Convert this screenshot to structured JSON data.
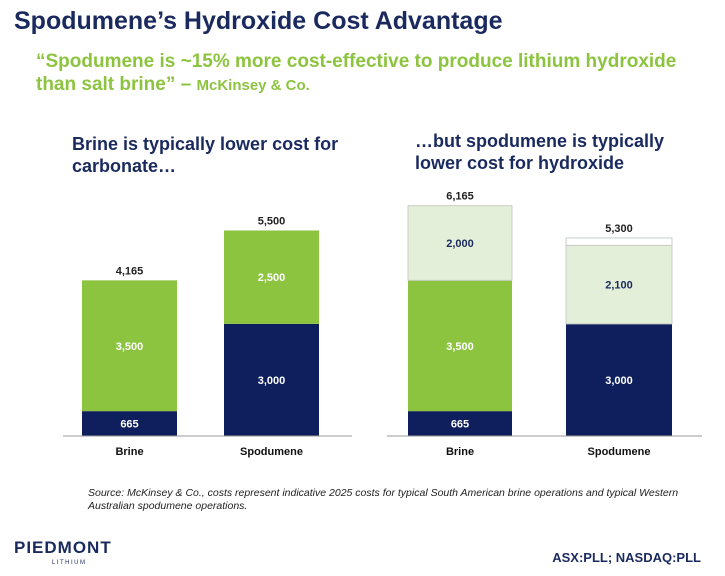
{
  "title": "Spodumene’s Hydroxide Cost Advantage",
  "quote": {
    "text": "“Spodumene is ~15% more cost-effective to produce lithium hydroxide than salt brine” – ",
    "attribution": "McKinsey & Co."
  },
  "colors": {
    "navy": "#0f1f5e",
    "green": "#8cc43f",
    "light_green": "#e3efd8",
    "white_segment": "#ffffff",
    "axis": "#999999"
  },
  "chart_data": [
    {
      "type": "bar",
      "stacked": true,
      "title": "Brine is typically lower cost for carbonate…",
      "categories": [
        "Brine",
        "Spodumene"
      ],
      "series": [
        {
          "values": [
            665,
            3000
          ],
          "color": "navy"
        },
        {
          "values": [
            3500,
            2500
          ],
          "color": "green"
        }
      ],
      "totals": [
        "4,165",
        "5,500"
      ]
    },
    {
      "type": "bar",
      "stacked": true,
      "title": "…but spodumene is typically lower cost for hydroxide",
      "categories": [
        "Brine",
        "Spodumene"
      ],
      "series": [
        {
          "values": [
            665,
            3000
          ],
          "color": "navy"
        },
        {
          "values": [
            3500,
            0
          ],
          "color": "green"
        },
        {
          "values": [
            2000,
            2100
          ],
          "color": "light_green"
        },
        {
          "values": [
            0,
            200
          ],
          "color": "white_segment"
        }
      ],
      "totals": [
        "6,165",
        "5,300"
      ]
    }
  ],
  "source": "Source: McKinsey & Co., costs represent indicative 2025 costs for typical South American brine operations and typical Western Australian spodumene operations.",
  "logo": {
    "name": "PIEDMONT",
    "sub": "LITHIUM"
  },
  "ticker": "ASX:PLL; NASDAQ:PLL"
}
